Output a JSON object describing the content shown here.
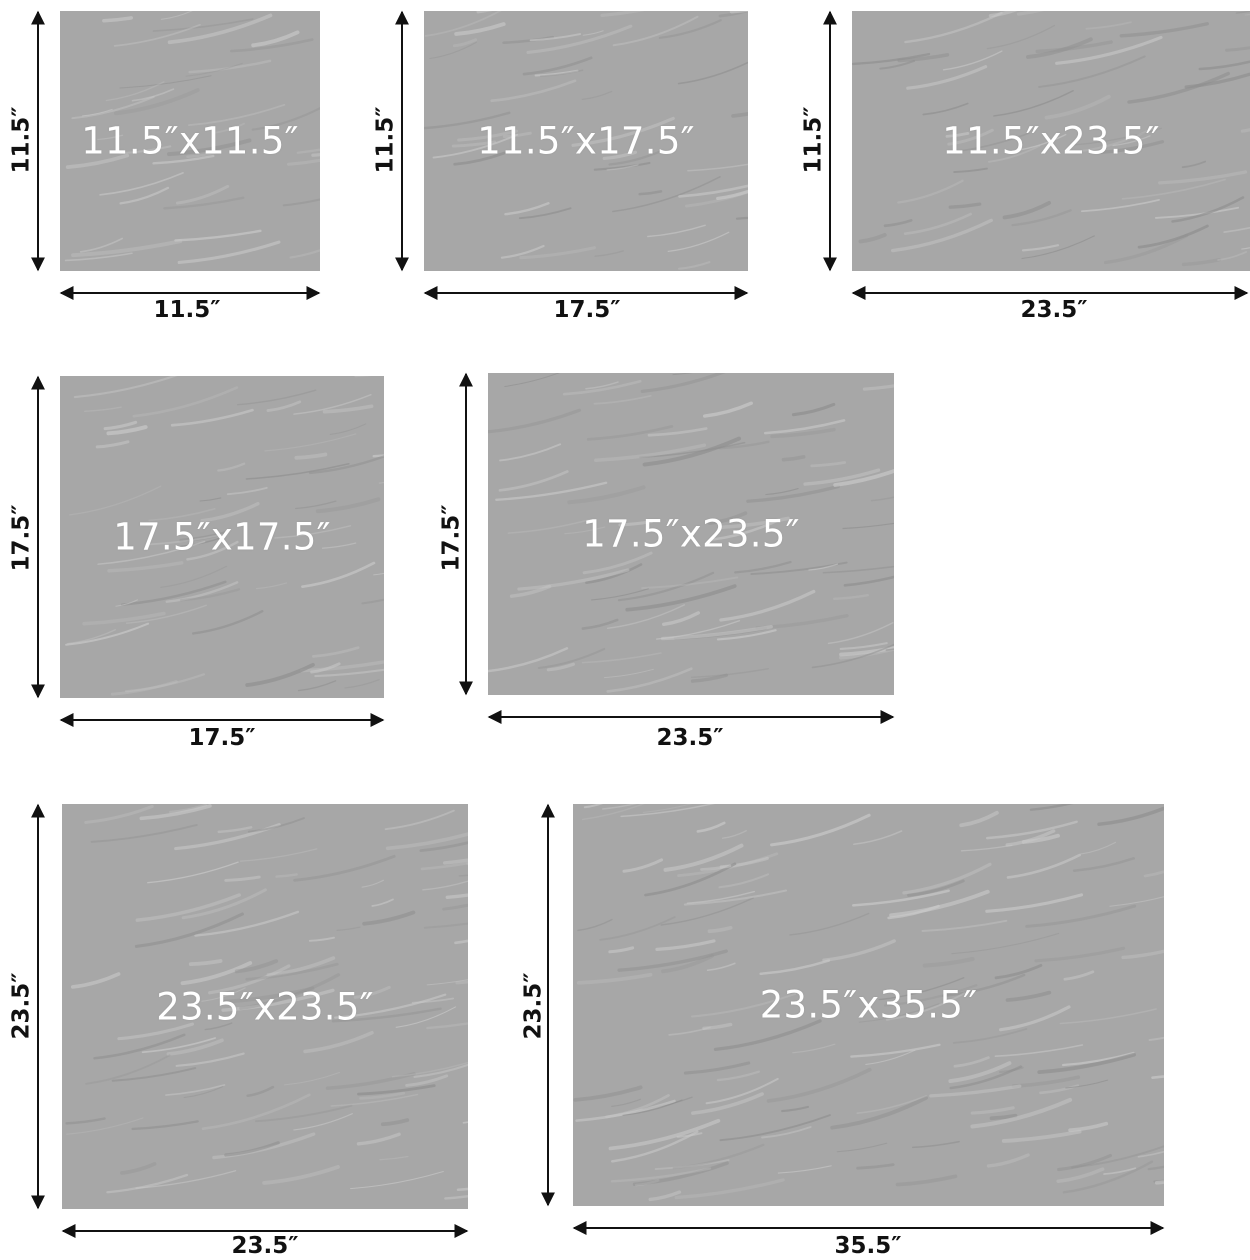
{
  "colors": {
    "tile_base": "#a7a7a7",
    "tile_light_streak": "#c8c8c8",
    "tile_dark_streak": "#8f8f8f",
    "tile_label": "#ffffff",
    "dimension_text": "#111111",
    "arrow": "#111111"
  },
  "tiles": [
    {
      "label": "11.5″x11.5″",
      "width_label": "11.5″",
      "height_label": "11.5″"
    },
    {
      "label": "11.5″x17.5″",
      "width_label": "17.5″",
      "height_label": "11.5″"
    },
    {
      "label": "11.5″x23.5″",
      "width_label": "23.5″",
      "height_label": "11.5″"
    },
    {
      "label": "17.5″x17.5″",
      "width_label": "17.5″",
      "height_label": "17.5″"
    },
    {
      "label": "17.5″x23.5″",
      "width_label": "23.5″",
      "height_label": "17.5″"
    },
    {
      "label": "23.5″x23.5″",
      "width_label": "23.5″",
      "height_label": "23.5″"
    },
    {
      "label": "23.5″x35.5″",
      "width_label": "35.5″",
      "height_label": "23.5″"
    }
  ]
}
